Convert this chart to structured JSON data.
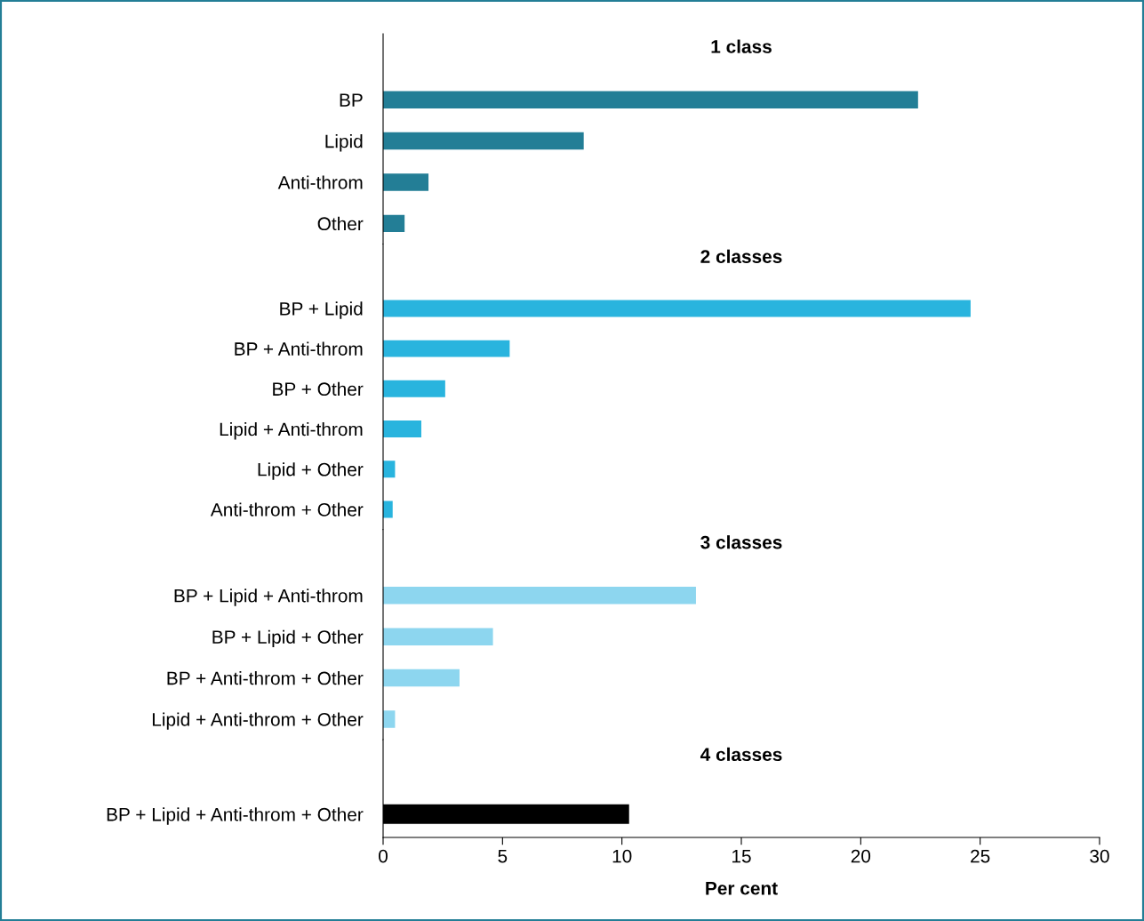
{
  "chart_data": [
    {
      "type": "bar",
      "orientation": "horizontal",
      "title": "1 class",
      "categories": [
        "BP",
        "Lipid",
        "Anti-throm",
        "Other"
      ],
      "values": [
        22.4,
        8.4,
        1.9,
        0.9
      ],
      "color": "#237e96",
      "xlim": [
        0,
        30
      ],
      "xticks": [
        0,
        5,
        10,
        15,
        20,
        25,
        30
      ],
      "tick_labels": "y"
    },
    {
      "type": "bar",
      "orientation": "horizontal",
      "title": "2 classes",
      "categories": [
        "BP + Lipid",
        "BP + Anti-throm",
        "BP + Other",
        "Lipid + Anti-throm",
        "Lipid + Other",
        "Anti-throm + Other"
      ],
      "values": [
        24.6,
        5.3,
        2.6,
        1.6,
        0.5,
        0.4
      ],
      "color": "#29b4de",
      "xlim": [
        0,
        30
      ],
      "xticks": [
        0,
        5,
        10,
        15,
        20,
        25,
        30
      ],
      "tick_labels": "y"
    },
    {
      "type": "bar",
      "orientation": "horizontal",
      "title": "3 classes",
      "categories": [
        "BP + Lipid + Anti-throm",
        "BP + Lipid + Other",
        "BP + Anti-throm + Other",
        "Lipid + Anti-throm + Other"
      ],
      "values": [
        13.1,
        4.6,
        3.2,
        0.5
      ],
      "color": "#8dd6ef",
      "xlim": [
        0,
        30
      ],
      "xticks": [
        0,
        5,
        10,
        15,
        20,
        25,
        30
      ],
      "tick_labels": "y"
    },
    {
      "type": "bar",
      "orientation": "horizontal",
      "title": "4 classes",
      "categories": [
        "BP + Lipid + Anti-throm + Other"
      ],
      "values": [
        10.3
      ],
      "color": "#000000",
      "xlim": [
        0,
        30
      ],
      "xticks": [
        0,
        5,
        10,
        15,
        20,
        25,
        30
      ],
      "xlabel": "Per cent"
    }
  ]
}
